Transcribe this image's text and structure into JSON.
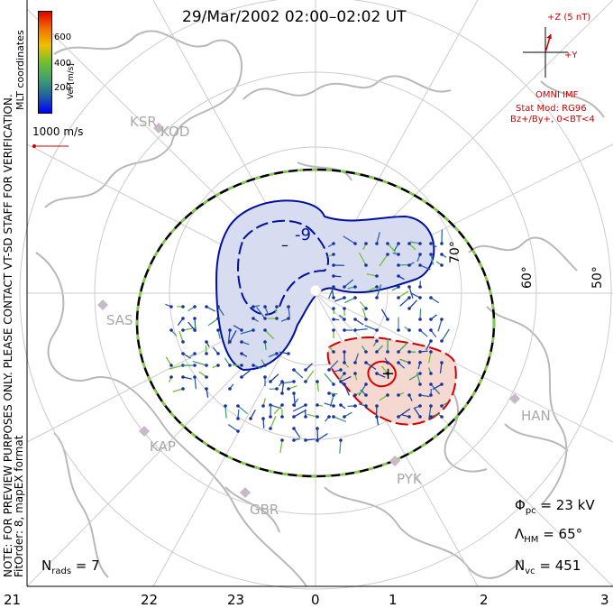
{
  "title": "29/Mar/2002 02:00–02:02 UT",
  "vertical_note_1": "NOTE: FOR PREVIEW PURPOSES ONLY. PLEASE CONTACT VT-SD STAFF FOR VERIFICATION.",
  "vertical_note_2": "FitOrder: 8, mapEX format",
  "mlt_label": "MLT coordinates",
  "color_scale": {
    "label": "Vel [m/s]",
    "ticks": [
      "600",
      "400",
      "200"
    ],
    "colors": [
      "#e00000",
      "#f07000",
      "#f0c000",
      "#70c030",
      "#40a070",
      "#2060a0",
      "#0000ff"
    ]
  },
  "scale_vector": {
    "label": "1000 m/s",
    "color": "#d00000"
  },
  "imf": {
    "z_label": "+Z (5 nT)",
    "y_label": "+Y",
    "source": "OMNI IMF",
    "stat_mod": "Stat Mod: RG96",
    "condition": "Bz+/By+, 0<BT<4",
    "color": "#d00000"
  },
  "latitude_labels": [
    "70°",
    "60°",
    "50°"
  ],
  "stations": [
    "KSR",
    "KOD",
    "SAS",
    "KAP",
    "GBR",
    "PYK",
    "HAN"
  ],
  "contours": {
    "negative_label": "-9",
    "negative_sign": "–",
    "positive_sign": "+",
    "negative_fill": "#d8dcf0",
    "positive_fill": "#f5d8d0",
    "negative_line": "#0010a0",
    "positive_line": "#d00000"
  },
  "stats": {
    "phi_pc": "23 kV",
    "lambda_hm": "65°",
    "n_vc": "451",
    "n_rads": "7"
  },
  "mlt_axis": [
    "21",
    "22",
    "23",
    "0",
    "1",
    "2",
    "3"
  ]
}
